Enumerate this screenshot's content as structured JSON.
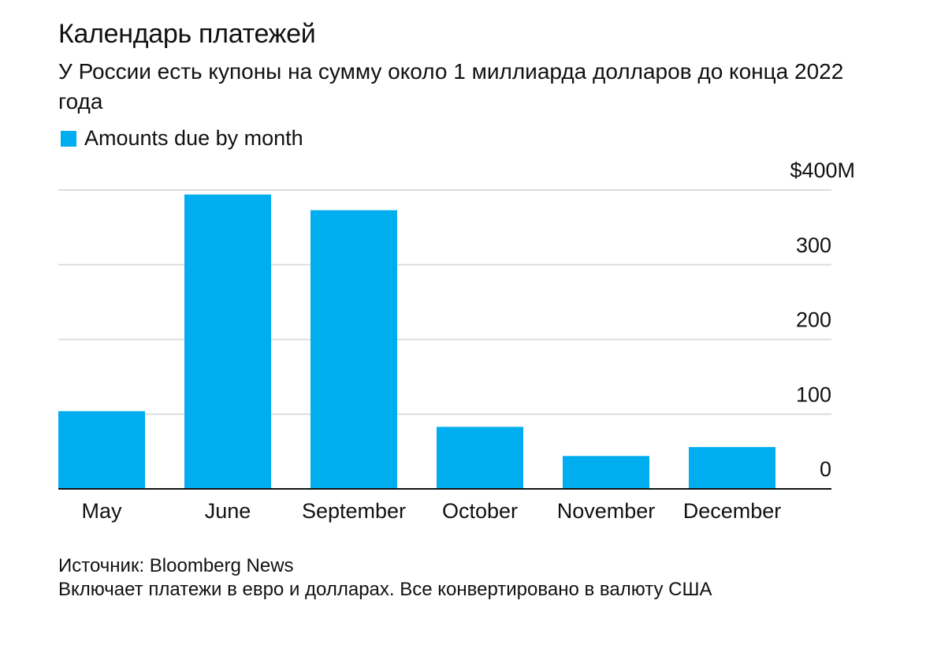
{
  "title": "Календарь платежей",
  "subtitle": "У России есть купоны на сумму около 1 миллиарда долларов до конца 2022 года",
  "legend": {
    "label": "Amounts due by month",
    "color": "#00aeef"
  },
  "footer": {
    "source": "Источник: Bloomberg News",
    "note": "Включает платежи в евро и долларах. Все конвертировано в валюту США"
  },
  "chart_data": {
    "type": "bar",
    "categories": [
      "May",
      "June",
      "September",
      "October",
      "November",
      "December"
    ],
    "series": [
      {
        "name": "Amounts due by month",
        "values": [
          104,
          394,
          373,
          83,
          44,
          56
        ]
      }
    ],
    "ylim": [
      0,
      400
    ],
    "yticks": [
      0,
      100,
      200,
      300,
      400
    ],
    "ytick_labels": [
      "0",
      "100",
      "200",
      "300",
      "$400M"
    ],
    "y_axis_position": "right",
    "grid": true,
    "bar_color": "#00aeef",
    "grid_color": "#dddddd",
    "legend_position": "top-left"
  }
}
